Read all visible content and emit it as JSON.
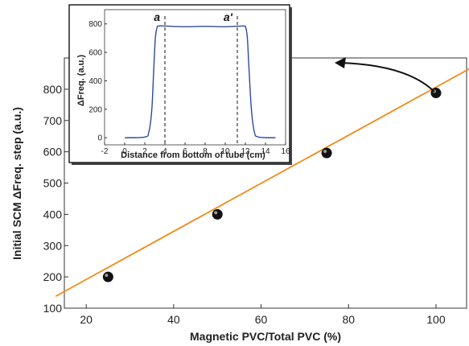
{
  "chart_data": [
    {
      "type": "scatter",
      "xlabel": "Magnetic PVC/Total PVC (%)",
      "ylabel": "Initial  SCM  ΔFreq. step (a.u.)",
      "xlim": [
        15,
        107
      ],
      "ylim": [
        100,
        900
      ],
      "xticks": [
        20,
        40,
        60,
        80,
        100
      ],
      "yticks": [
        100,
        200,
        300,
        400,
        500,
        600,
        700,
        800
      ],
      "series": [
        {
          "x": [
            25,
            50,
            75,
            100
          ],
          "y": [
            200,
            400,
            596,
            788
          ]
        }
      ],
      "fit_line": {
        "x": [
          13,
          108
        ],
        "y": [
          138,
          868
        ],
        "color": "#f28a1a"
      },
      "marker_color": "#111111",
      "grid": false
    },
    {
      "type": "line",
      "xlabel": "Distance from bottom of tube (cm)",
      "ylabel": "ΔFreq. (a.u.)",
      "xlim": [
        -2,
        16
      ],
      "ylim": [
        -50,
        900
      ],
      "xticks": [
        -2,
        0,
        2,
        4,
        6,
        8,
        10,
        12,
        14,
        16
      ],
      "yticks": [
        0,
        200,
        400,
        600,
        800
      ],
      "x": [
        0,
        2.0,
        2.4,
        2.7,
        2.9,
        3.05,
        3.2,
        3.35,
        4,
        6,
        8,
        10,
        11.8,
        12.05,
        12.2,
        12.35,
        12.6,
        12.9,
        13.3,
        15
      ],
      "y": [
        0,
        5,
        40,
        200,
        500,
        700,
        770,
        785,
        785,
        780,
        783,
        780,
        785,
        770,
        700,
        500,
        200,
        40,
        5,
        0
      ],
      "line_color": "#2e4a9e",
      "markers": [
        {
          "label": "a",
          "x": 4
        },
        {
          "label": "a'",
          "x": 11.2
        }
      ],
      "grid": false
    }
  ]
}
